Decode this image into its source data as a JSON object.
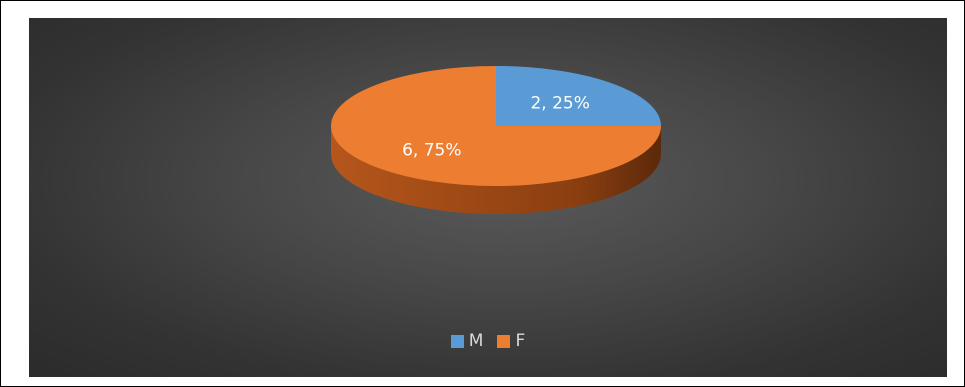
{
  "chart_data": {
    "type": "pie",
    "title": "",
    "categories": [
      "M",
      "F"
    ],
    "values": [
      2,
      6
    ],
    "percents": [
      25,
      75
    ],
    "data_labels": [
      "2, 25%",
      "6, 75%"
    ],
    "colors": [
      "#5b9bd5",
      "#ed7d31"
    ],
    "legend_position": "bottom",
    "style": "3d"
  },
  "legend": {
    "items": [
      {
        "label": "M",
        "color": "#5b9bd5"
      },
      {
        "label": "F",
        "color": "#ed7d31"
      }
    ]
  }
}
